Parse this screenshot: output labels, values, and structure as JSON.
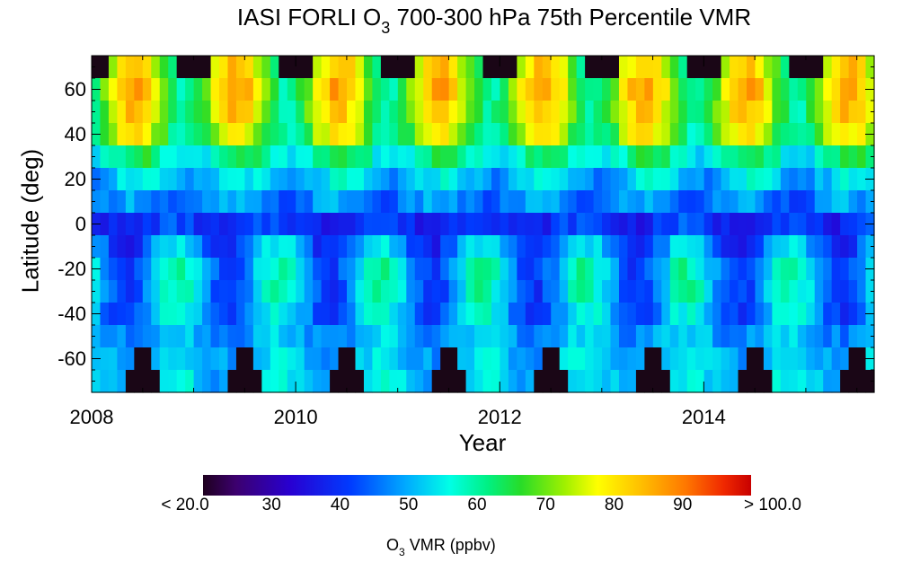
{
  "title": {
    "prefix": "IASI FORLI O",
    "subscript": "3",
    "suffix": " 700-300 hPa 75th Percentile VMR"
  },
  "chart_data": {
    "type": "heatmap",
    "title": "IASI FORLI O3 700-300 hPa 75th Percentile VMR",
    "xlabel": "Year",
    "ylabel": "Latitude (deg)",
    "xlim": [
      2008.0,
      2015.67
    ],
    "ylim": [
      -75,
      75
    ],
    "x_ticks": [
      "2008",
      "2010",
      "2012",
      "2014"
    ],
    "y_ticks": [
      "60",
      "40",
      "20",
      "0",
      "-20",
      "-40",
      "-60"
    ],
    "y_tick_values": [
      60,
      40,
      20,
      0,
      -20,
      -40,
      -60
    ],
    "x_tick_values": [
      2008,
      2010,
      2012,
      2014
    ],
    "n_months": 92,
    "lat_band_centers": [
      70,
      60,
      50,
      40,
      30,
      20,
      10,
      0,
      -10,
      -20,
      -30,
      -40,
      -50,
      -60,
      -70
    ],
    "band_profiles_ppbv": [
      {
        "lat": 70,
        "min": 58,
        "max": 84,
        "peak_month": 4.5,
        "phase": "nh"
      },
      {
        "lat": 60,
        "min": 60,
        "max": 87,
        "peak_month": 4.5,
        "phase": "nh"
      },
      {
        "lat": 50,
        "min": 60,
        "max": 84,
        "peak_month": 4.5,
        "phase": "nh"
      },
      {
        "lat": 40,
        "min": 59,
        "max": 80,
        "peak_month": 4.5,
        "phase": "nh"
      },
      {
        "lat": 30,
        "min": 53,
        "max": 65,
        "peak_month": 5.0,
        "phase": "nh"
      },
      {
        "lat": 20,
        "min": 47,
        "max": 56,
        "peak_month": 5.0,
        "phase": "nh"
      },
      {
        "lat": 10,
        "min": 43,
        "max": 50,
        "peak_month": 4.0,
        "phase": "nh"
      },
      {
        "lat": 0,
        "min": 37,
        "max": 43,
        "peak_month": 9.0,
        "phase": "trop"
      },
      {
        "lat": -10,
        "min": 38,
        "max": 55,
        "peak_month": 9.5,
        "phase": "sh"
      },
      {
        "lat": -20,
        "min": 41,
        "max": 60,
        "peak_month": 9.5,
        "phase": "sh"
      },
      {
        "lat": -30,
        "min": 40,
        "max": 60,
        "peak_month": 9.5,
        "phase": "sh"
      },
      {
        "lat": -40,
        "min": 40,
        "max": 57,
        "peak_month": 9.5,
        "phase": "sh"
      },
      {
        "lat": -50,
        "min": 46,
        "max": 53,
        "peak_month": 9.5,
        "phase": "sh"
      },
      {
        "lat": -60,
        "min": 48,
        "max": 55,
        "peak_month": 9.5,
        "phase": "sh"
      },
      {
        "lat": -70,
        "min": 48,
        "max": 56,
        "peak_month": 9.5,
        "phase": "sh"
      }
    ],
    "missing_data": "Polar night gaps shown as black cells: NH (lat 70) around Nov-Feb each year; SH (lat -60/-70) around May-Aug each year",
    "colorbar": {
      "min": 20,
      "max": 100,
      "ticks": [
        "<  20.0",
        "30",
        "40",
        "50",
        "60",
        "70",
        "80",
        "90",
        "> 100.0"
      ],
      "tick_values": [
        20,
        30,
        40,
        50,
        60,
        70,
        80,
        90,
        100
      ],
      "label_prefix": "O",
      "label_subscript": "3",
      "label_suffix": " VMR (ppbv)"
    }
  }
}
